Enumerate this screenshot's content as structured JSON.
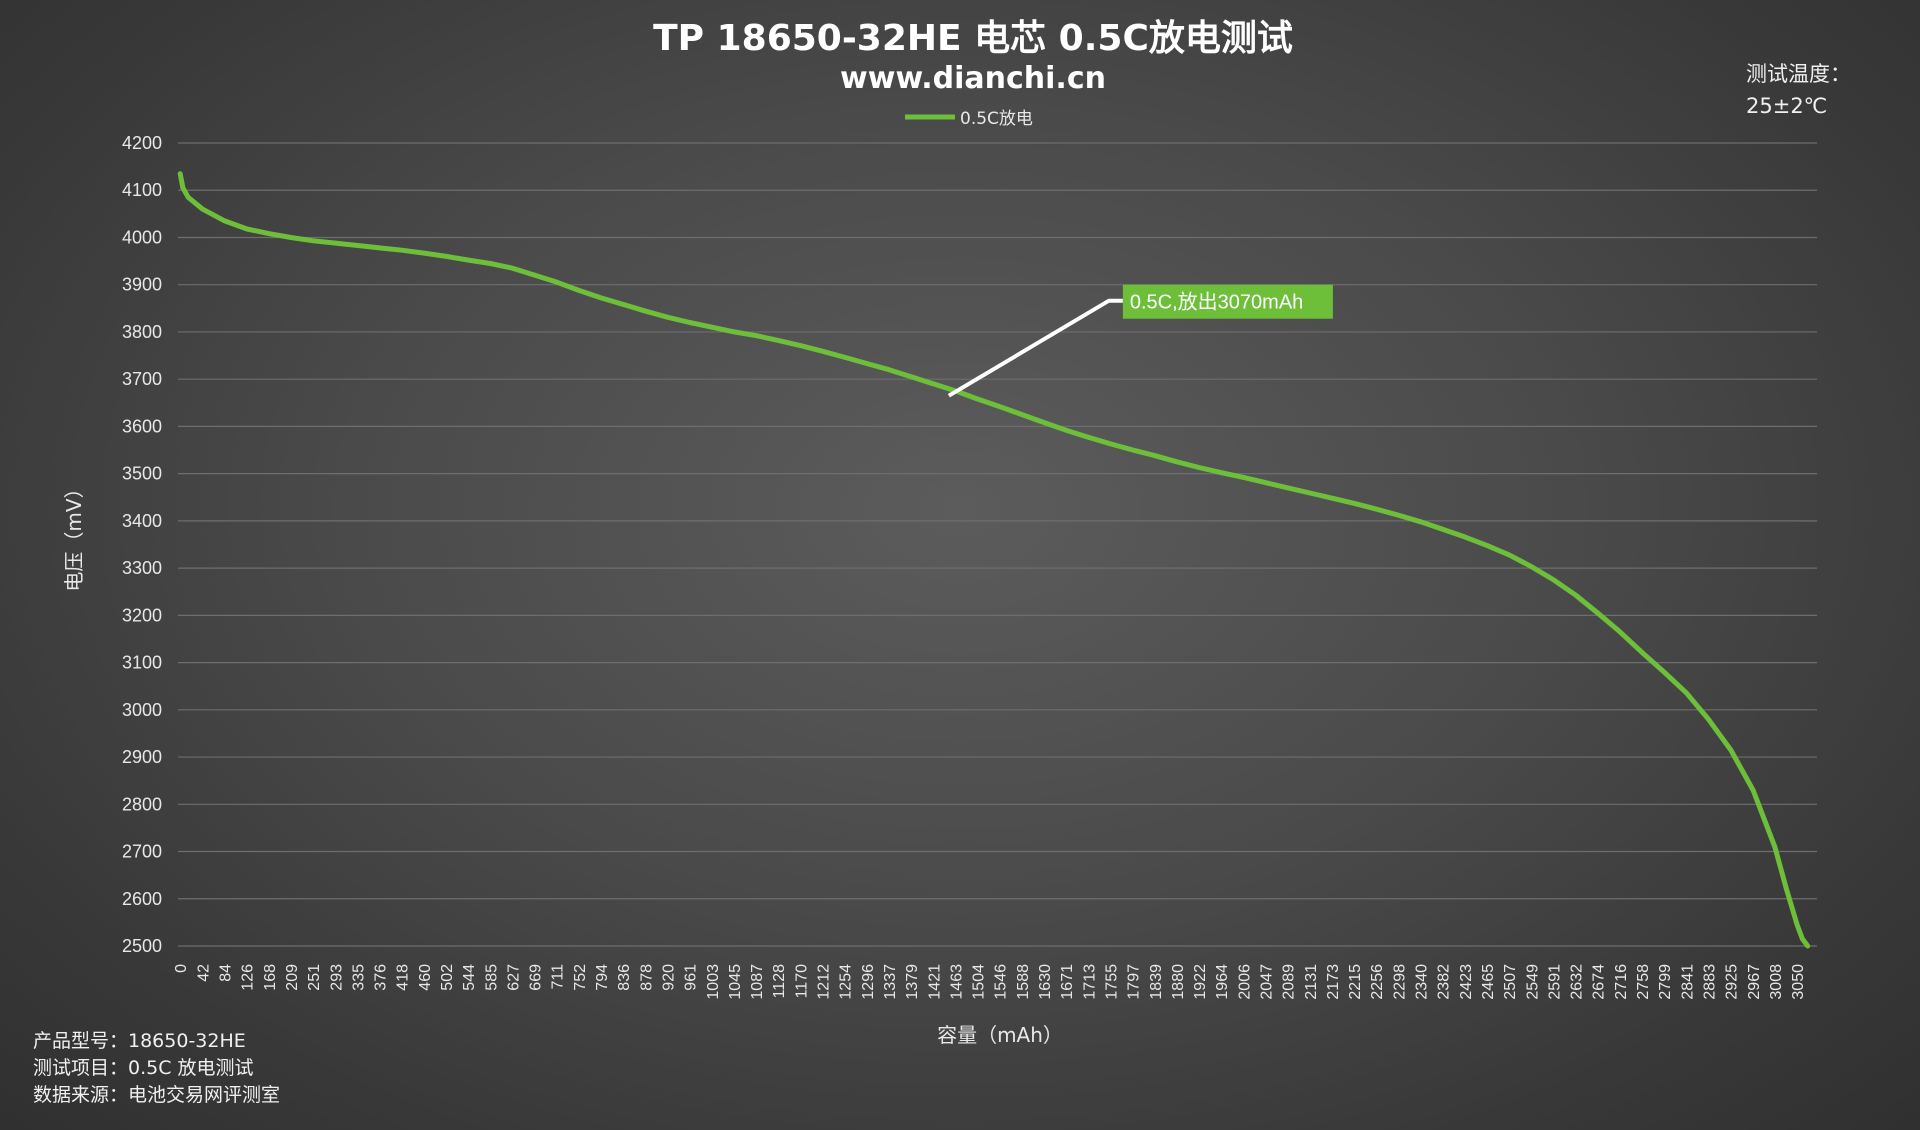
{
  "chart_data": {
    "type": "line",
    "title": "TP 18650-32HE 电芯 0.5C放电测试",
    "subtitle": "www.dianchi.cn",
    "xlabel": "容量（mAh）",
    "ylabel": "电压（mV）",
    "ylim": [
      2500,
      4200
    ],
    "yticks": [
      2500,
      2600,
      2700,
      2800,
      2900,
      3000,
      3100,
      3200,
      3300,
      3400,
      3500,
      3600,
      3700,
      3800,
      3900,
      4000,
      4100,
      4200
    ],
    "xlim": [
      0,
      3070
    ],
    "xticks": [
      "0",
      "42",
      "84",
      "126",
      "168",
      "209",
      "251",
      "293",
      "335",
      "376",
      "418",
      "460",
      "502",
      "544",
      "585",
      "627",
      "669",
      "711",
      "752",
      "794",
      "836",
      "878",
      "920",
      "961",
      "1003",
      "1045",
      "1087",
      "1128",
      "1170",
      "1212",
      "1254",
      "1296",
      "1337",
      "1379",
      "1421",
      "1463",
      "1504",
      "1546",
      "1588",
      "1630",
      "1671",
      "1713",
      "1755",
      "1797",
      "1839",
      "1880",
      "1922",
      "1964",
      "2006",
      "2047",
      "2089",
      "2131",
      "2173",
      "2215",
      "2256",
      "2298",
      "2340",
      "2382",
      "2423",
      "2465",
      "2507",
      "2549",
      "2591",
      "2632",
      "2674",
      "2716",
      "2758",
      "2799",
      "2841",
      "2883",
      "2925",
      "2967",
      "3008",
      "3050"
    ],
    "grid": true,
    "legend_position": "top-center",
    "series": [
      {
        "name": "0.5C放电",
        "color": "#6dbf3a",
        "x": [
          0,
          5,
          15,
          42,
          84,
          126,
          168,
          209,
          251,
          293,
          335,
          376,
          418,
          460,
          502,
          544,
          585,
          627,
          669,
          711,
          752,
          794,
          836,
          878,
          920,
          961,
          1003,
          1045,
          1087,
          1128,
          1170,
          1212,
          1254,
          1296,
          1337,
          1379,
          1421,
          1463,
          1504,
          1546,
          1588,
          1630,
          1671,
          1713,
          1755,
          1797,
          1839,
          1880,
          1922,
          1964,
          2006,
          2047,
          2089,
          2131,
          2173,
          2215,
          2256,
          2298,
          2340,
          2382,
          2423,
          2465,
          2507,
          2549,
          2591,
          2632,
          2674,
          2716,
          2758,
          2799,
          2841,
          2883,
          2925,
          2967,
          3008,
          3030,
          3050,
          3060,
          3070
        ],
        "y": [
          4135,
          4105,
          4085,
          4060,
          4035,
          4018,
          4008,
          4000,
          3993,
          3988,
          3983,
          3978,
          3973,
          3967,
          3960,
          3952,
          3945,
          3935,
          3920,
          3905,
          3888,
          3872,
          3858,
          3844,
          3831,
          3820,
          3810,
          3800,
          3792,
          3782,
          3771,
          3759,
          3746,
          3733,
          3720,
          3705,
          3690,
          3675,
          3658,
          3642,
          3625,
          3608,
          3592,
          3577,
          3563,
          3550,
          3538,
          3525,
          3513,
          3502,
          3492,
          3481,
          3470,
          3459,
          3448,
          3437,
          3425,
          3412,
          3398,
          3382,
          3366,
          3348,
          3328,
          3303,
          3275,
          3243,
          3205,
          3165,
          3121,
          3080,
          3036,
          2980,
          2915,
          2830,
          2710,
          2620,
          2545,
          2515,
          2500
        ]
      }
    ],
    "annotation": {
      "text": "0.5C,放出3070mAh",
      "x": 1450,
      "y": 3665,
      "box_color": "#6dbf3a"
    }
  },
  "info": {
    "model": "产品型号：18650-32HE",
    "test_item": "测试项目：0.5C 放电测试",
    "source": "数据来源：电池交易网评测室"
  },
  "temperature": {
    "label": "测试温度：",
    "value": "25±2℃"
  }
}
